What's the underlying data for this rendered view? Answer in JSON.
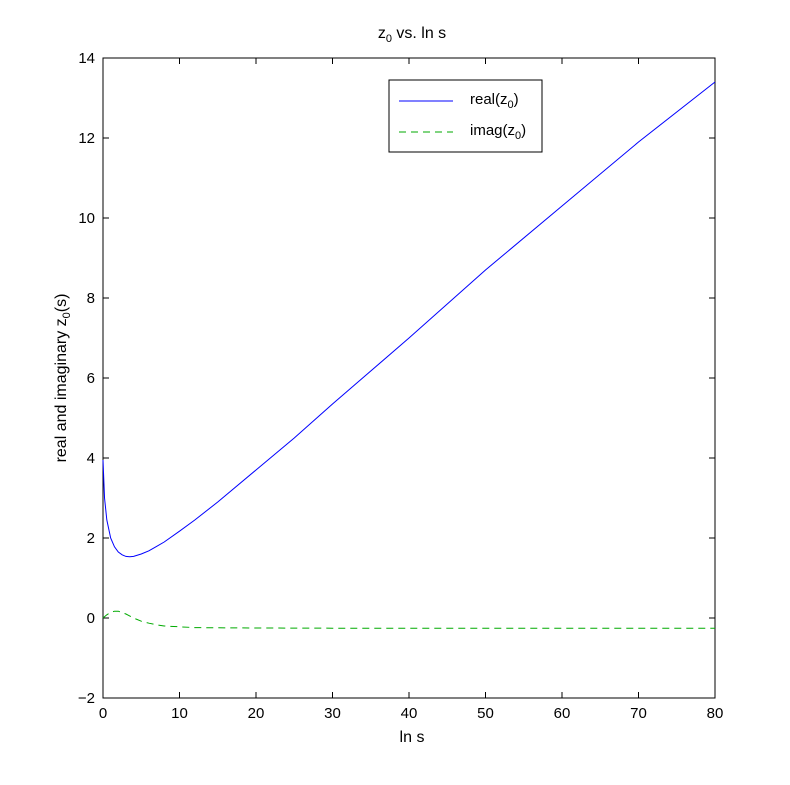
{
  "chart_data": {
    "type": "line",
    "title": "z",
    "title_sub": "0",
    "title_rest": " vs. ln s",
    "xlabel": "ln s",
    "ylabel": "real and imaginary z",
    "ylabel_sub": "0",
    "ylabel_rest": "(s)",
    "xlim": [
      0,
      80
    ],
    "ylim": [
      -2,
      14
    ],
    "xticks": [
      0,
      10,
      20,
      30,
      40,
      50,
      60,
      70,
      80
    ],
    "yticks": [
      -2,
      0,
      2,
      4,
      6,
      8,
      10,
      12,
      14
    ],
    "grid": false,
    "legend_position": "top-center",
    "series": [
      {
        "name": "real(z",
        "name_sub": "0",
        "name_rest": ")",
        "style": "solid",
        "color": "#0000ff",
        "x": [
          0,
          0.2,
          0.5,
          1,
          1.5,
          2,
          2.5,
          3,
          3.5,
          4,
          5,
          6,
          7,
          8,
          10,
          12,
          15,
          20,
          25,
          30,
          40,
          50,
          60,
          70,
          80
        ],
        "y": [
          3.95,
          3.0,
          2.45,
          2.0,
          1.78,
          1.65,
          1.58,
          1.54,
          1.53,
          1.54,
          1.6,
          1.68,
          1.79,
          1.9,
          2.17,
          2.45,
          2.9,
          3.7,
          4.5,
          5.35,
          7.0,
          8.7,
          10.3,
          11.9,
          13.4
        ]
      },
      {
        "name": "imag(z",
        "name_sub": "0",
        "name_rest": ")",
        "style": "dashed",
        "color": "#00aa00",
        "x": [
          0,
          0.5,
          1,
          1.5,
          2,
          3,
          4,
          5,
          6,
          7,
          8,
          10,
          12,
          15,
          20,
          30,
          40,
          50,
          60,
          70,
          80
        ],
        "y": [
          0.0,
          0.08,
          0.14,
          0.17,
          0.17,
          0.1,
          0.0,
          -0.08,
          -0.13,
          -0.17,
          -0.2,
          -0.22,
          -0.24,
          -0.245,
          -0.25,
          -0.255,
          -0.255,
          -0.255,
          -0.255,
          -0.255,
          -0.255
        ]
      }
    ]
  }
}
